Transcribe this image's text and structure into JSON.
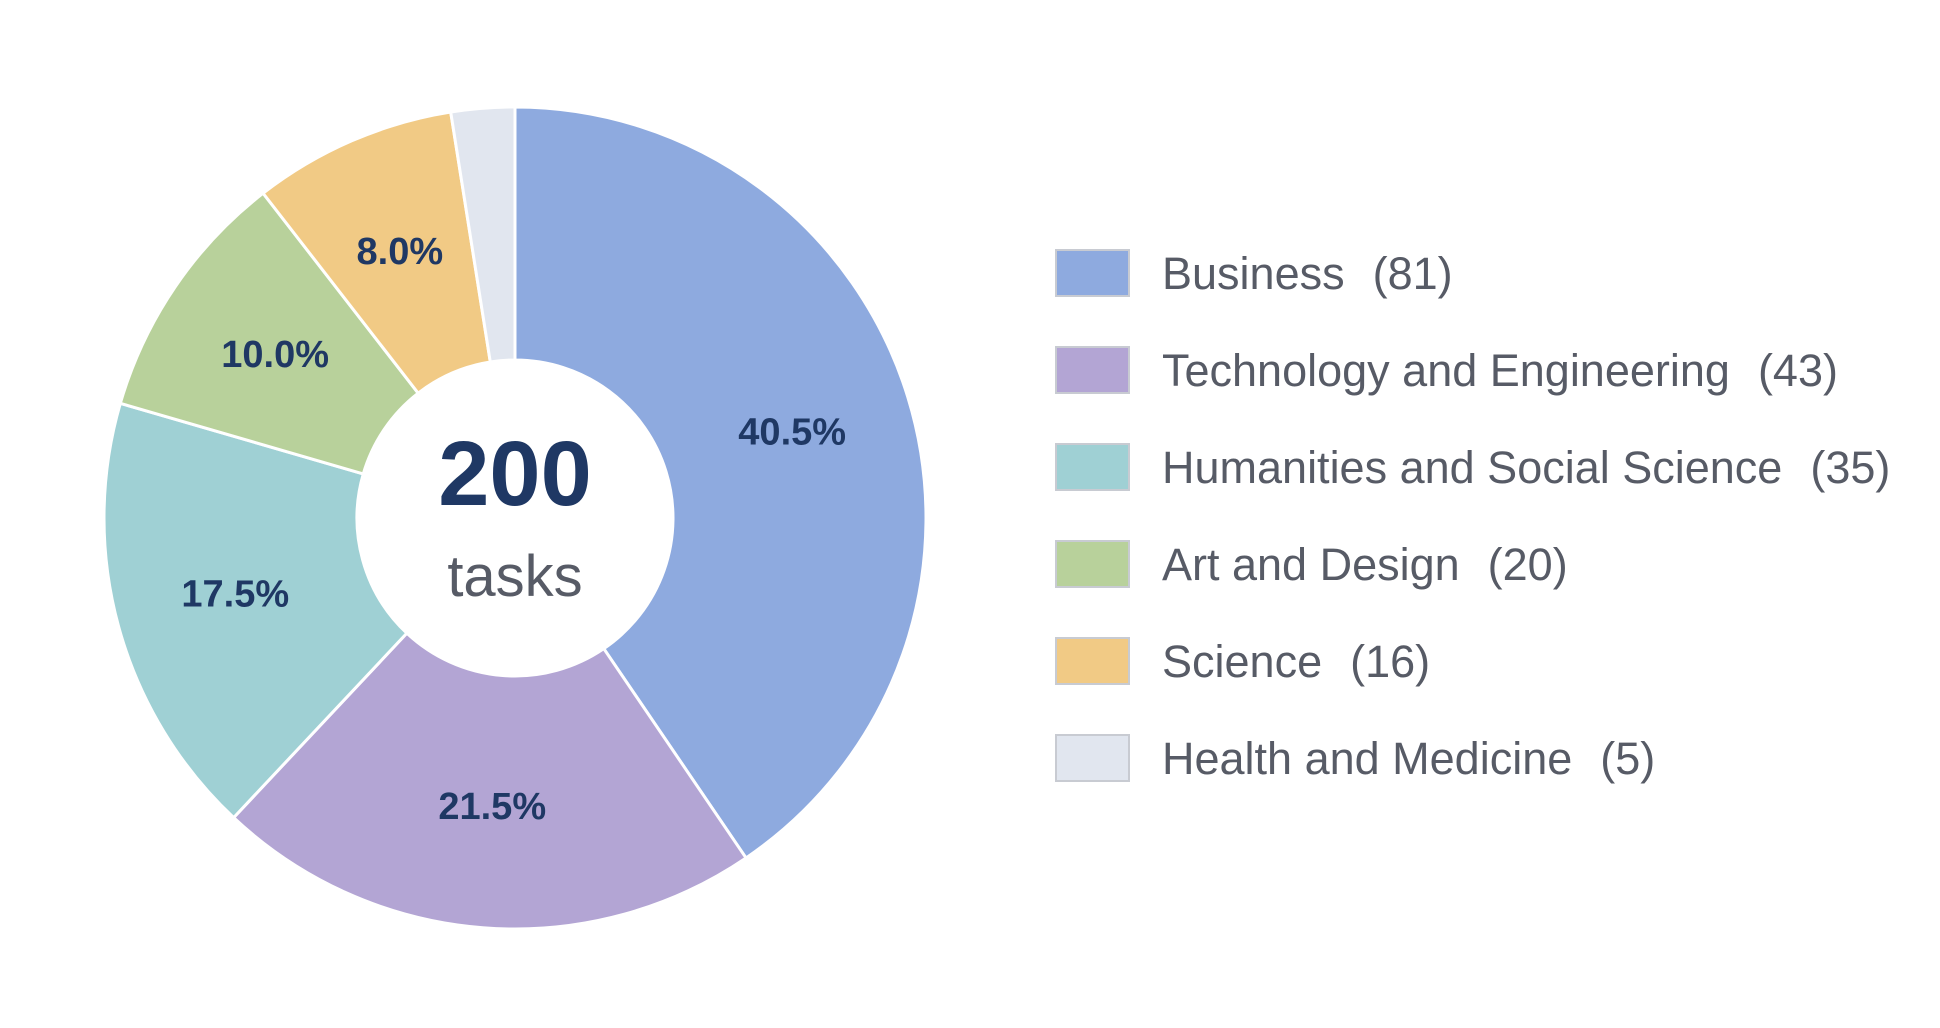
{
  "chart_data": {
    "type": "pie",
    "variant": "donut",
    "center": {
      "total": "200",
      "unit": "tasks"
    },
    "legend_position": "right",
    "slices": [
      {
        "name": "Business",
        "count": 81,
        "percent": 40.5,
        "color": "#8eaadf",
        "pct_label": "40.5%",
        "legend_label": "Business",
        "legend_count": "(81)"
      },
      {
        "name": "Technology and Engineering",
        "count": 43,
        "percent": 21.5,
        "color": "#b3a5d4",
        "pct_label": "21.5%",
        "legend_label": "Technology and Engineering",
        "legend_count": "(43)"
      },
      {
        "name": "Humanities and Social Science",
        "count": 35,
        "percent": 17.5,
        "color": "#9fd0d4",
        "pct_label": "17.5%",
        "legend_label": "Humanities and Social Science",
        "legend_count": "(35)"
      },
      {
        "name": "Art and Design",
        "count": 20,
        "percent": 10.0,
        "color": "#b8d19b",
        "pct_label": "10.0%",
        "legend_label": "Art and Design",
        "legend_count": "(20)"
      },
      {
        "name": "Science",
        "count": 16,
        "percent": 8.0,
        "color": "#f1ca85",
        "pct_label": "8.0%",
        "legend_label": "Science",
        "legend_count": "(16)"
      },
      {
        "name": "Health and Medicine",
        "count": 5,
        "percent": 2.5,
        "color": "#e1e6ef",
        "pct_label": "",
        "legend_label": "Health and Medicine",
        "legend_count": "(5)"
      }
    ]
  }
}
